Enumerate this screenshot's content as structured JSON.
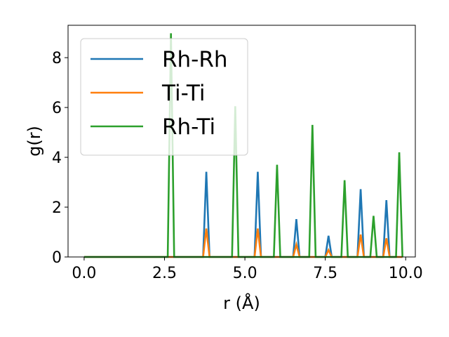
{
  "chart_data": {
    "type": "line",
    "xlabel": "r (Å)",
    "ylabel": "g(r)",
    "xlim": [
      -0.5,
      10.3
    ],
    "ylim": [
      0,
      9.3
    ],
    "x_ticks": [
      0.0,
      2.5,
      5.0,
      7.5,
      10.0
    ],
    "x_tick_labels": [
      "0.0",
      "2.5",
      "5.0",
      "7.5",
      "10.0"
    ],
    "y_ticks": [
      0,
      2,
      4,
      6,
      8
    ],
    "y_tick_labels": [
      "0",
      "2",
      "4",
      "6",
      "8"
    ],
    "grid": false,
    "legend_position": "top-left",
    "peak_half_width": 0.1,
    "x_end": 9.9,
    "series": [
      {
        "name": "Rh-Rh",
        "color": "#1f77b4",
        "peaks": [
          {
            "x": 3.8,
            "y": 3.42
          },
          {
            "x": 5.4,
            "y": 3.42
          },
          {
            "x": 6.6,
            "y": 1.52
          },
          {
            "x": 7.6,
            "y": 0.85
          },
          {
            "x": 8.6,
            "y": 2.72
          },
          {
            "x": 9.4,
            "y": 2.28
          }
        ]
      },
      {
        "name": "Ti-Ti",
        "color": "#ff7f0e",
        "peaks": [
          {
            "x": 3.8,
            "y": 1.14
          },
          {
            "x": 5.4,
            "y": 1.14
          },
          {
            "x": 6.6,
            "y": 0.5
          },
          {
            "x": 7.6,
            "y": 0.28
          },
          {
            "x": 8.6,
            "y": 0.9
          },
          {
            "x": 9.4,
            "y": 0.75
          }
        ]
      },
      {
        "name": "Rh-Ti",
        "color": "#2ca02c",
        "peaks": [
          {
            "x": 2.7,
            "y": 8.98
          },
          {
            "x": 4.7,
            "y": 6.05
          },
          {
            "x": 6.0,
            "y": 3.7
          },
          {
            "x": 7.1,
            "y": 5.3
          },
          {
            "x": 8.1,
            "y": 3.08
          },
          {
            "x": 9.0,
            "y": 1.65
          },
          {
            "x": 9.8,
            "y": 4.2
          }
        ]
      }
    ]
  }
}
